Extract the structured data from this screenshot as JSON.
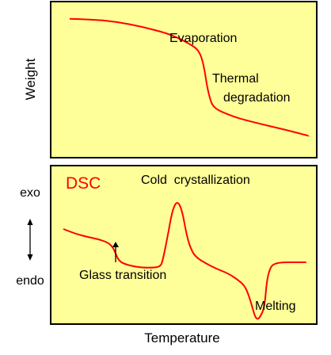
{
  "colors": {
    "panel_fill": "#ffff99",
    "panel_border": "#000000",
    "curve": "#ff0000",
    "dsc_label": "#ff0000",
    "text": "#000000"
  },
  "chart_data": [
    {
      "type": "line",
      "panel": "tga",
      "title": "",
      "xlabel": "Temperature",
      "ylabel": "Weight",
      "ticks": "none",
      "series": [
        {
          "x": [
            0.0,
            0.1,
            0.2,
            0.3,
            0.4,
            0.45,
            0.5,
            0.54,
            0.56,
            0.575,
            0.59,
            0.6,
            0.62,
            0.65,
            0.7,
            0.8,
            0.9,
            1.0
          ],
          "y": [
            0.89,
            0.885,
            0.87,
            0.84,
            0.8,
            0.77,
            0.73,
            0.69,
            0.6,
            0.45,
            0.36,
            0.33,
            0.305,
            0.285,
            0.255,
            0.215,
            0.18,
            0.14
          ]
        }
      ],
      "annotations": [
        {
          "text": "Evaporation"
        },
        {
          "text": "Thermal"
        },
        {
          "text": "degradation"
        }
      ]
    },
    {
      "type": "line",
      "panel": "dsc",
      "title": "DSC",
      "xlabel": "Temperature",
      "ylabel_top": "exo",
      "ylabel_bottom": "endo",
      "ticks": "none",
      "series": [
        {
          "x": [
            0.0,
            0.05,
            0.1,
            0.16,
            0.2,
            0.22,
            0.23,
            0.25,
            0.3,
            0.35,
            0.4,
            0.41,
            0.43,
            0.45,
            0.47,
            0.49,
            0.51,
            0.53,
            0.55,
            0.58,
            0.63,
            0.68,
            0.72,
            0.75,
            0.77,
            0.79,
            0.8,
            0.81,
            0.83,
            0.84,
            0.855,
            0.87,
            0.9,
            0.95,
            1.0
          ],
          "y": [
            0.6,
            0.57,
            0.55,
            0.53,
            0.5,
            0.43,
            0.4,
            0.38,
            0.36,
            0.355,
            0.36,
            0.4,
            0.55,
            0.72,
            0.78,
            0.72,
            0.55,
            0.46,
            0.42,
            0.39,
            0.35,
            0.32,
            0.28,
            0.24,
            0.16,
            0.05,
            0.03,
            0.04,
            0.1,
            0.28,
            0.36,
            0.38,
            0.39,
            0.39,
            0.39
          ]
        }
      ],
      "annotations": [
        {
          "text": "Cold  crystallization"
        },
        {
          "text": "Glass transition"
        },
        {
          "text": "Melting"
        }
      ]
    }
  ]
}
